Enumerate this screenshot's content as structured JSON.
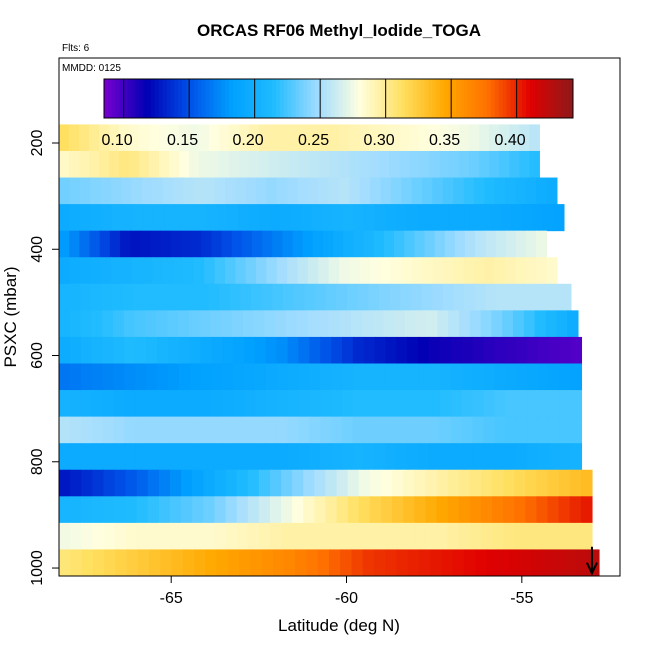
{
  "chart_data": {
    "type": "heatmap",
    "title": "ORCAS RF06 Methyl_Iodide_TOGA",
    "annotations": {
      "flights": "Flts: 6",
      "date": "MMDD: 0125"
    },
    "xlabel": "Latitude (deg N)",
    "ylabel": "PSXC (mbar)",
    "xlim": [
      -68.2,
      -52.2
    ],
    "ylim": [
      1015,
      40
    ],
    "x_ticks": [
      -65,
      -60,
      -55
    ],
    "y_ticks": [
      200,
      400,
      600,
      800,
      1000
    ],
    "x_tick_labels": [
      "-65",
      "-60",
      "-55"
    ],
    "y_tick_labels": [
      "200",
      "400",
      "600",
      "800",
      "1000"
    ],
    "colorbar": {
      "range": [
        0.09,
        0.448
      ],
      "ticks": [
        0.1,
        0.15,
        0.2,
        0.25,
        0.3,
        0.35,
        0.4
      ],
      "tick_labels": [
        "0.10",
        "0.15",
        "0.20",
        "0.25",
        "0.30",
        "0.35",
        "0.40"
      ],
      "palette": [
        "#7a00d0",
        "#0000b4",
        "#0050e8",
        "#00a0ff",
        "#20bcff",
        "#a0dcff",
        "#ffffe0",
        "#ffe060",
        "#ffa800",
        "#ff7000",
        "#e00000",
        "#8c1a1a"
      ]
    },
    "level_bounds_mbar": [
      165,
      215,
      265,
      315,
      365,
      415,
      465,
      515,
      565,
      615,
      665,
      715,
      765,
      815,
      865,
      915,
      965,
      1015
    ],
    "series": [
      {
        "name": "200 mbar",
        "x_end": -54.5,
        "values": [
          0.32,
          0.29,
          0.28,
          0.3,
          0.3,
          0.29,
          0.28,
          0.26
        ]
      },
      {
        "name": "250 mbar",
        "x_end": -54.5,
        "values": [
          0.29,
          0.31,
          0.28,
          0.27,
          0.26,
          0.25,
          0.24,
          0.22
        ]
      },
      {
        "name": "300 mbar",
        "x_end": -54.0,
        "values": [
          0.24,
          0.25,
          0.26,
          0.25,
          0.26,
          0.24,
          0.22,
          0.2
        ]
      },
      {
        "name": "350 mbar",
        "x_end": -53.8,
        "values": [
          0.2,
          0.21,
          0.21,
          0.2,
          0.21,
          0.2,
          0.2,
          0.19
        ]
      },
      {
        "name": "400 mbar",
        "x_end": -54.3,
        "values": [
          0.19,
          0.13,
          0.14,
          0.17,
          0.2,
          0.23,
          0.26,
          0.28
        ]
      },
      {
        "name": "450 mbar",
        "x_end": -54.0,
        "values": [
          0.2,
          0.21,
          0.22,
          0.25,
          0.28,
          0.29,
          0.3,
          0.29
        ]
      },
      {
        "name": "500 mbar",
        "x_end": -53.6,
        "values": [
          0.21,
          0.22,
          0.22,
          0.23,
          0.24,
          0.25,
          0.26,
          0.26
        ]
      },
      {
        "name": "550 mbar",
        "x_end": -53.4,
        "values": [
          0.21,
          0.23,
          0.24,
          0.25,
          0.26,
          0.27,
          0.24,
          0.2
        ]
      },
      {
        "name": "600 mbar",
        "x_end": -53.3,
        "values": [
          0.2,
          0.22,
          0.2,
          0.18,
          0.14,
          0.12,
          0.11,
          0.1
        ]
      },
      {
        "name": "650 mbar",
        "x_end": -53.3,
        "values": [
          0.17,
          0.18,
          0.19,
          0.2,
          0.21,
          0.21,
          0.2,
          0.19
        ]
      },
      {
        "name": "700 mbar",
        "x_end": -53.3,
        "values": [
          0.21,
          0.2,
          0.2,
          0.21,
          0.22,
          0.22,
          0.23,
          0.23
        ]
      },
      {
        "name": "750 mbar",
        "x_end": -53.3,
        "values": [
          0.26,
          0.25,
          0.25,
          0.25,
          0.24,
          0.24,
          0.23,
          0.23
        ]
      },
      {
        "name": "800 mbar",
        "x_end": -53.3,
        "values": [
          0.2,
          0.2,
          0.2,
          0.2,
          0.21,
          0.2,
          0.2,
          0.21
        ]
      },
      {
        "name": "850 mbar",
        "x_end": -53.0,
        "values": [
          0.13,
          0.16,
          0.2,
          0.24,
          0.28,
          0.3,
          0.32,
          0.34
        ]
      },
      {
        "name": "900 mbar",
        "x_end": -53.0,
        "values": [
          0.21,
          0.22,
          0.24,
          0.28,
          0.32,
          0.35,
          0.38,
          0.41
        ]
      },
      {
        "name": "950 mbar",
        "x_end": -53.0,
        "values": [
          0.28,
          0.29,
          0.29,
          0.3,
          0.3,
          0.3,
          0.31,
          0.31
        ]
      },
      {
        "name": "1000 mbar",
        "x_end": -52.8,
        "values": [
          0.31,
          0.33,
          0.35,
          0.37,
          0.4,
          0.41,
          0.42,
          0.43
        ]
      }
    ]
  }
}
